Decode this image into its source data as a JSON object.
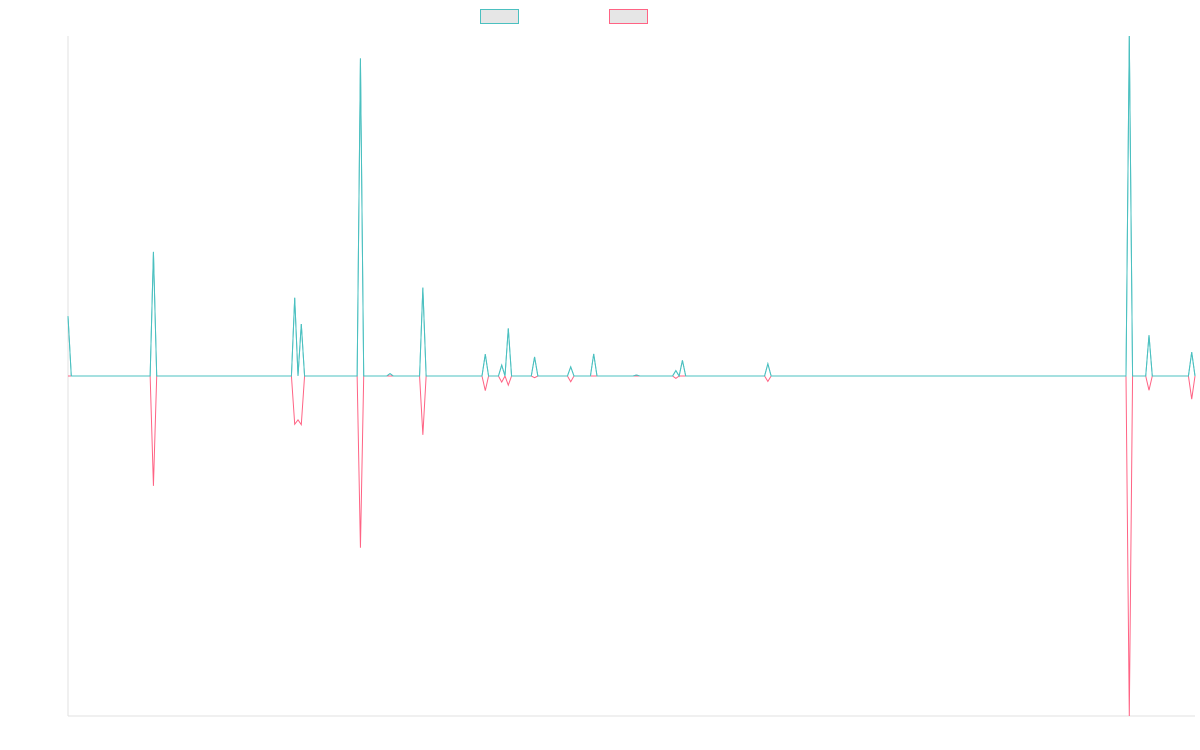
{
  "colors": {
    "series_a": "#4bc0c0",
    "series_b": "#ff6384",
    "axis": "#e0e0e0",
    "legend_fill": "#e6e6e6"
  },
  "chart_data": {
    "type": "line",
    "title": "",
    "xlabel": "",
    "ylabel": "",
    "grid": false,
    "legend_position": "top",
    "xlim": [
      0,
      328
    ],
    "ylim": [
      -100,
      100
    ],
    "series": [
      {
        "name": "",
        "color": "#4bc0c0",
        "points": [
          [
            0,
            17.6
          ],
          [
            1,
            0
          ],
          [
            25,
            0
          ],
          [
            26,
            36.5
          ],
          [
            27,
            0
          ],
          [
            68,
            0
          ],
          [
            69,
            23
          ],
          [
            70,
            0
          ],
          [
            71,
            15.3
          ],
          [
            72,
            0
          ],
          [
            88,
            0
          ],
          [
            89,
            93.4
          ],
          [
            90,
            0
          ],
          [
            97,
            0
          ],
          [
            98,
            0.7
          ],
          [
            99,
            0
          ],
          [
            107,
            0
          ],
          [
            108,
            26
          ],
          [
            109,
            0
          ],
          [
            126,
            0
          ],
          [
            127,
            6.4
          ],
          [
            128,
            0
          ],
          [
            131,
            0
          ],
          [
            132,
            3.2
          ],
          [
            133,
            0
          ],
          [
            134,
            14
          ],
          [
            135,
            0
          ],
          [
            141,
            0
          ],
          [
            142,
            5.6
          ],
          [
            143,
            0
          ],
          [
            152,
            0
          ],
          [
            153,
            2.7
          ],
          [
            154,
            0
          ],
          [
            159,
            0
          ],
          [
            160,
            6.5
          ],
          [
            161,
            0
          ],
          [
            172,
            0
          ],
          [
            173,
            0.3
          ],
          [
            174,
            0
          ],
          [
            184,
            0
          ],
          [
            185,
            1.6
          ],
          [
            186,
            0
          ],
          [
            187,
            4.6
          ],
          [
            188,
            0
          ],
          [
            212,
            0
          ],
          [
            213,
            3.6
          ],
          [
            214,
            0
          ],
          [
            322,
            0
          ],
          [
            323,
            100
          ],
          [
            324,
            0
          ],
          [
            328,
            0
          ],
          [
            329,
            12
          ],
          [
            330,
            0
          ],
          [
            341,
            0
          ],
          [
            342,
            7
          ],
          [
            343,
            0
          ]
        ]
      },
      {
        "name": "",
        "color": "#ff6384",
        "points": [
          [
            0,
            0
          ],
          [
            25,
            0
          ],
          [
            26,
            -32.3
          ],
          [
            27,
            0
          ],
          [
            68,
            0
          ],
          [
            69,
            -14.2
          ],
          [
            70,
            -12.9
          ],
          [
            71,
            -14.3
          ],
          [
            72,
            0
          ],
          [
            88,
            0
          ],
          [
            89,
            -50.5
          ],
          [
            90,
            0
          ],
          [
            107,
            0
          ],
          [
            108,
            -17.3
          ],
          [
            109,
            0
          ],
          [
            126,
            0
          ],
          [
            127,
            -4.3
          ],
          [
            128,
            0
          ],
          [
            131,
            0
          ],
          [
            132,
            -1.8
          ],
          [
            133,
            0
          ],
          [
            134,
            -2.7
          ],
          [
            135,
            0
          ],
          [
            141,
            0
          ],
          [
            142,
            -0.5
          ],
          [
            143,
            0
          ],
          [
            152,
            0
          ],
          [
            153,
            -1.7
          ],
          [
            154,
            0
          ],
          [
            184,
            0
          ],
          [
            185,
            -0.7
          ],
          [
            186,
            0
          ],
          [
            212,
            0
          ],
          [
            213,
            -1.6
          ],
          [
            214,
            0
          ],
          [
            322,
            0
          ],
          [
            323,
            -100
          ],
          [
            324,
            0
          ],
          [
            328,
            0
          ],
          [
            329,
            -4.2
          ],
          [
            330,
            0
          ],
          [
            341,
            0
          ],
          [
            342,
            -6.8
          ],
          [
            343,
            0
          ]
        ]
      }
    ]
  }
}
